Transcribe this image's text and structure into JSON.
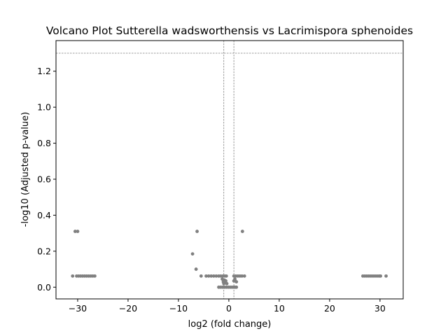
{
  "chart_data": {
    "type": "scatter",
    "title": "Volcano Plot Sutterella wadsworthensis vs Lacrimispora sphenoides",
    "xlabel": "log2 (fold change)",
    "ylabel": "-log10 (Adjusted p-value)",
    "xlim": [
      -34.3,
      34.6
    ],
    "ylim": [
      -0.065,
      1.37
    ],
    "xticks": [
      -30,
      -20,
      -10,
      0,
      10,
      20,
      30
    ],
    "xtick_labels": [
      "−30",
      "−20",
      "−10",
      "0",
      "10",
      "20",
      "30"
    ],
    "yticks": [
      0.0,
      0.2,
      0.4,
      0.6,
      0.8,
      1.0,
      1.2
    ],
    "ytick_labels": [
      "0.0",
      "0.2",
      "0.4",
      "0.6",
      "0.8",
      "1.0",
      "1.2"
    ],
    "threshold_lines": {
      "y": 1.3,
      "x": [
        -1,
        1
      ]
    },
    "grid": false,
    "point_color": "#808080",
    "line_color": "#808080",
    "points": [
      {
        "x": -30.5,
        "y": 0.31
      },
      {
        "x": -30.0,
        "y": 0.31
      },
      {
        "x": -31.0,
        "y": 0.062
      },
      {
        "x": -30.2,
        "y": 0.062
      },
      {
        "x": -29.8,
        "y": 0.062
      },
      {
        "x": -29.4,
        "y": 0.062
      },
      {
        "x": -29.0,
        "y": 0.062
      },
      {
        "x": -28.6,
        "y": 0.062
      },
      {
        "x": -28.2,
        "y": 0.062
      },
      {
        "x": -27.8,
        "y": 0.062
      },
      {
        "x": -27.4,
        "y": 0.062
      },
      {
        "x": -27.0,
        "y": 0.062
      },
      {
        "x": -26.6,
        "y": 0.062
      },
      {
        "x": -6.3,
        "y": 0.31
      },
      {
        "x": -7.2,
        "y": 0.185
      },
      {
        "x": -6.5,
        "y": 0.1
      },
      {
        "x": -5.5,
        "y": 0.062
      },
      {
        "x": -4.5,
        "y": 0.062
      },
      {
        "x": -4.0,
        "y": 0.062
      },
      {
        "x": -3.5,
        "y": 0.062
      },
      {
        "x": -3.0,
        "y": 0.062
      },
      {
        "x": -2.5,
        "y": 0.062
      },
      {
        "x": -2.0,
        "y": 0.062
      },
      {
        "x": -1.6,
        "y": 0.062
      },
      {
        "x": -1.2,
        "y": 0.062
      },
      {
        "x": -0.8,
        "y": 0.062
      },
      {
        "x": -0.5,
        "y": 0.062
      },
      {
        "x": -1.3,
        "y": 0.045
      },
      {
        "x": -0.9,
        "y": 0.04
      },
      {
        "x": -0.6,
        "y": 0.035
      },
      {
        "x": -1.1,
        "y": 0.03
      },
      {
        "x": -0.7,
        "y": 0.025
      },
      {
        "x": -1.0,
        "y": 0.02
      },
      {
        "x": -0.4,
        "y": 0.02
      },
      {
        "x": -2.0,
        "y": 0.0
      },
      {
        "x": -1.6,
        "y": 0.0
      },
      {
        "x": -1.2,
        "y": 0.0
      },
      {
        "x": -0.8,
        "y": 0.0
      },
      {
        "x": -0.4,
        "y": 0.0
      },
      {
        "x": 0.0,
        "y": 0.0
      },
      {
        "x": 0.4,
        "y": 0.0
      },
      {
        "x": 0.8,
        "y": 0.0
      },
      {
        "x": 1.2,
        "y": 0.0
      },
      {
        "x": 1.5,
        "y": 0.0
      },
      {
        "x": 1.0,
        "y": 0.062
      },
      {
        "x": 1.4,
        "y": 0.062
      },
      {
        "x": 1.8,
        "y": 0.062
      },
      {
        "x": 2.2,
        "y": 0.062
      },
      {
        "x": 2.6,
        "y": 0.062
      },
      {
        "x": 3.1,
        "y": 0.062
      },
      {
        "x": 1.0,
        "y": 0.035
      },
      {
        "x": 1.5,
        "y": 0.03
      },
      {
        "x": 1.2,
        "y": 0.045
      },
      {
        "x": 2.7,
        "y": 0.31
      },
      {
        "x": 26.6,
        "y": 0.062
      },
      {
        "x": 27.0,
        "y": 0.062
      },
      {
        "x": 27.4,
        "y": 0.062
      },
      {
        "x": 27.8,
        "y": 0.062
      },
      {
        "x": 28.2,
        "y": 0.062
      },
      {
        "x": 28.6,
        "y": 0.062
      },
      {
        "x": 29.0,
        "y": 0.062
      },
      {
        "x": 29.4,
        "y": 0.062
      },
      {
        "x": 29.8,
        "y": 0.062
      },
      {
        "x": 30.1,
        "y": 0.062
      },
      {
        "x": 31.2,
        "y": 0.062
      }
    ]
  }
}
